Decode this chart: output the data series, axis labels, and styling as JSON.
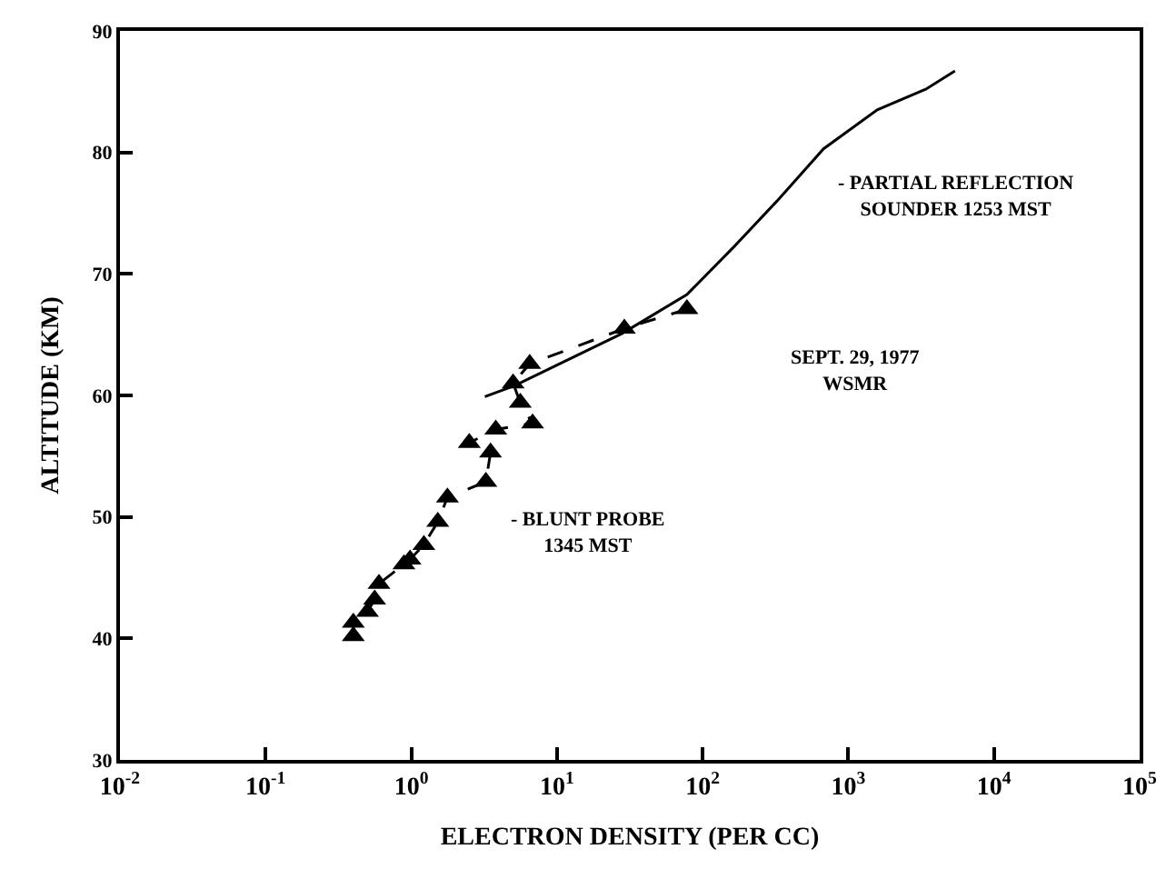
{
  "chart_data": {
    "type": "line",
    "xlabel": "ELECTRON DENSITY (PER CC)",
    "ylabel": "ALTITUDE (KM)",
    "log": "x",
    "xlim": [
      0.01,
      100000
    ],
    "ylim": [
      30,
      90
    ],
    "xticks": [
      {
        "value": 0.01,
        "label": "10$^{-2}$"
      },
      {
        "value": 0.1,
        "label": "10$^{-1}$"
      },
      {
        "value": 1,
        "label": "10$^{0}$"
      },
      {
        "value": 10,
        "label": "10$^{1}$"
      },
      {
        "value": 100,
        "label": "10$^{2}$"
      },
      {
        "value": 1000,
        "label": "10$^{3}$"
      },
      {
        "value": 10000,
        "label": "10$^{4}$"
      },
      {
        "value": 100000,
        "label": "10$^{5}$"
      }
    ],
    "yticks": [
      30,
      40,
      50,
      60,
      70,
      80,
      90
    ],
    "series": [
      {
        "color": "#000000",
        "marker": "triangle",
        "line_style": "dashed",
        "x": [
          0.4,
          0.4,
          0.5,
          0.56,
          0.6,
          0.89,
          0.98,
          1.22,
          1.52,
          1.77,
          3.25,
          3.5,
          2.5,
          3.8,
          6.8,
          5.6,
          5.0,
          6.5,
          29,
          78
        ],
        "values": [
          40.2,
          41.3,
          42.2,
          43.2,
          44.5,
          46.1,
          46.5,
          47.7,
          49.6,
          51.6,
          52.9,
          55.3,
          56.1,
          57.2,
          57.7,
          59.4,
          61.0,
          62.6,
          65.5,
          67.1
        ]
      },
      {
        "color": "#000000",
        "marker": "none",
        "line_style": "solid",
        "x": [
          3.2,
          5.1,
          28,
          78,
          166,
          324,
          676,
          1580,
          3400,
          5400
        ],
        "values": [
          59.9,
          60.8,
          65.1,
          68.3,
          72.3,
          76.0,
          80.3,
          83.5,
          85.2,
          86.7
        ]
      }
    ],
    "annotations": [
      "- PARTIAL REFLECTION\nSOUNDER 1253 MST",
      "SEPT. 29, 1977\nWSMR",
      "- BLUNT PROBE\n1345 MST"
    ]
  }
}
